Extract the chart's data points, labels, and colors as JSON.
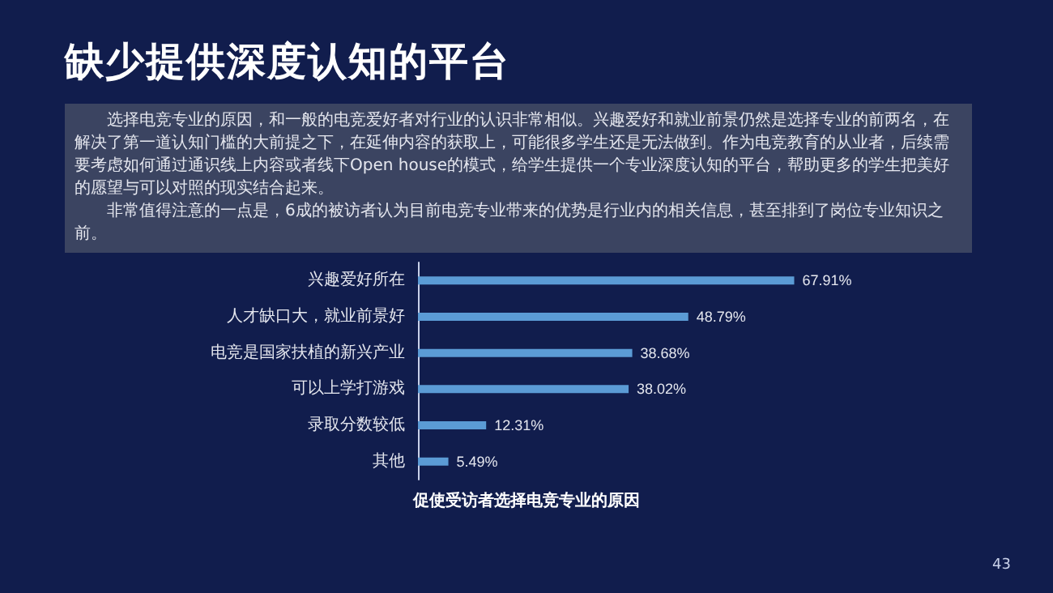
{
  "chart_data": {
    "type": "bar",
    "orientation": "horizontal",
    "title": "缺少提供深度认知的平台",
    "subtitle": "选择电竞专业的原因，和一般的电竞爱好者对行业的认识非常相似。兴趣爱好和就业前景仍然是选择专业的前两名，在解决了第一道认知门槛的大前提之下，在延伸内容的获取上，可能很多学生还是无法做到。作为电竞教育的从业者，后续需要考虑如何通过通识线上内容或者线下Open house的模式，给学生提供一个专业深度认知的平台，帮助更多的学生把美好的愿望与可以对照的现实结合起来。",
    "xlabel": "促使受访者选择电竞专业的原因",
    "categories": [
      "兴趣爱好所在",
      "人才缺口大，就业前景好",
      "电竞是国家扶植的新兴产业",
      "可以上学打游戏",
      "录取分数较低",
      "其他"
    ],
    "values": [
      67.91,
      48.79,
      38.68,
      38.02,
      12.31,
      5.49
    ],
    "value_labels": [
      "67.91%",
      "48.79%",
      "38.68%",
      "38.02%",
      "12.31%",
      "5.49%"
    ],
    "color": "#5b9bd5",
    "annotations": [
      "非常值得注意的一点是，6成的被访者认为目前电竞专业带来的优势是行业内的相关信息，甚至排到了岗位专业知识之前。",
      "43"
    ]
  }
}
